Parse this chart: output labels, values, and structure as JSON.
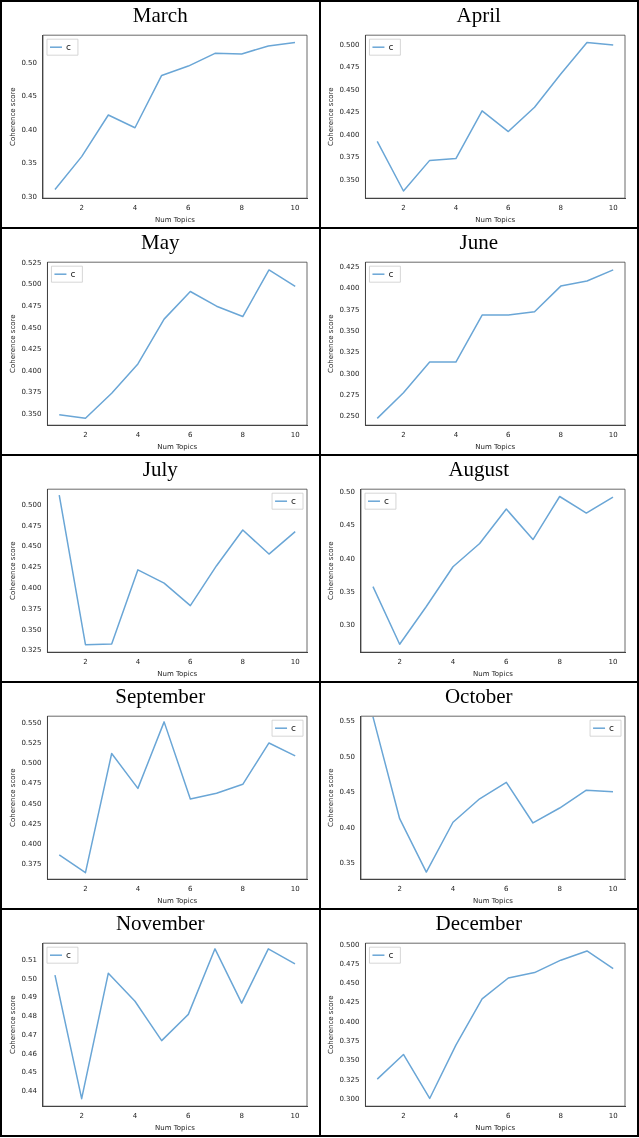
{
  "chart_data": [
    {
      "type": "line",
      "title": "March",
      "xlabel": "Num Topics",
      "ylabel": "Coherence score",
      "x": [
        1,
        2,
        3,
        4,
        5,
        6,
        7,
        8,
        9,
        10
      ],
      "xlim": [
        0.55,
        10.45
      ],
      "xticks": [
        2,
        4,
        6,
        8,
        10
      ],
      "ylim": [
        0.298,
        0.541
      ],
      "yticks": [
        {
          "value": 0.3,
          "label": "0.30"
        },
        {
          "value": 0.35,
          "label": "0.35"
        },
        {
          "value": 0.4,
          "label": "0.40"
        },
        {
          "value": 0.45,
          "label": "0.45"
        },
        {
          "value": 0.5,
          "label": "0.50"
        }
      ],
      "legend": "top left",
      "series": [
        {
          "name": "c",
          "color": "#6aa6d6",
          "values": [
            0.311,
            0.36,
            0.422,
            0.403,
            0.481,
            0.495,
            0.514,
            0.513,
            0.525,
            0.53
          ]
        }
      ]
    },
    {
      "type": "line",
      "title": "April",
      "xlabel": "Num Topics",
      "ylabel": "Coherence score",
      "x": [
        1,
        2,
        3,
        4,
        5,
        6,
        7,
        8,
        9,
        10
      ],
      "xlim": [
        0.55,
        10.45
      ],
      "xticks": [
        2,
        4,
        6,
        8,
        10
      ],
      "ylim": [
        0.33,
        0.511
      ],
      "yticks": [
        {
          "value": 0.35,
          "label": "0.350"
        },
        {
          "value": 0.375,
          "label": "0.375"
        },
        {
          "value": 0.4,
          "label": "0.400"
        },
        {
          "value": 0.425,
          "label": "0.425"
        },
        {
          "value": 0.45,
          "label": "0.450"
        },
        {
          "value": 0.475,
          "label": "0.475"
        },
        {
          "value": 0.5,
          "label": "0.500"
        }
      ],
      "legend": "top left",
      "series": [
        {
          "name": "c",
          "color": "#6aa6d6",
          "values": [
            0.393,
            0.338,
            0.372,
            0.374,
            0.427,
            0.404,
            0.431,
            0.468,
            0.503,
            0.5
          ]
        }
      ]
    },
    {
      "type": "line",
      "title": "May",
      "xlabel": "Num Topics",
      "ylabel": "Coherence score",
      "x": [
        1,
        2,
        3,
        4,
        5,
        6,
        7,
        8,
        9,
        10
      ],
      "xlim": [
        0.55,
        10.45
      ],
      "xticks": [
        2,
        4,
        6,
        8,
        10
      ],
      "ylim": [
        0.337,
        0.526
      ],
      "yticks": [
        {
          "value": 0.35,
          "label": "0.350"
        },
        {
          "value": 0.375,
          "label": "0.375"
        },
        {
          "value": 0.4,
          "label": "0.400"
        },
        {
          "value": 0.425,
          "label": "0.425"
        },
        {
          "value": 0.45,
          "label": "0.450"
        },
        {
          "value": 0.475,
          "label": "0.475"
        },
        {
          "value": 0.5,
          "label": "0.500"
        },
        {
          "value": 0.525,
          "label": "0.525"
        }
      ],
      "legend": "top left",
      "series": [
        {
          "name": "c",
          "color": "#6aa6d6",
          "values": [
            0.349,
            0.345,
            0.374,
            0.408,
            0.46,
            0.492,
            0.475,
            0.463,
            0.517,
            0.498
          ]
        }
      ]
    },
    {
      "type": "line",
      "title": "June",
      "xlabel": "Num Topics",
      "ylabel": "Coherence score",
      "x": [
        1,
        2,
        3,
        4,
        5,
        6,
        7,
        8,
        9,
        10
      ],
      "xlim": [
        0.55,
        10.45
      ],
      "xticks": [
        2,
        4,
        6,
        8,
        10
      ],
      "ylim": [
        0.24,
        0.431
      ],
      "yticks": [
        {
          "value": 0.25,
          "label": "0.250"
        },
        {
          "value": 0.275,
          "label": "0.275"
        },
        {
          "value": 0.3,
          "label": "0.300"
        },
        {
          "value": 0.325,
          "label": "0.325"
        },
        {
          "value": 0.35,
          "label": "0.350"
        },
        {
          "value": 0.375,
          "label": "0.375"
        },
        {
          "value": 0.4,
          "label": "0.400"
        },
        {
          "value": 0.425,
          "label": "0.425"
        }
      ],
      "legend": "top left",
      "series": [
        {
          "name": "c",
          "color": "#6aa6d6",
          "values": [
            0.248,
            0.278,
            0.314,
            0.314,
            0.369,
            0.369,
            0.373,
            0.403,
            0.409,
            0.422
          ]
        }
      ]
    },
    {
      "type": "line",
      "title": "July",
      "xlabel": "Num Topics",
      "ylabel": "Coherence score",
      "x": [
        1,
        2,
        3,
        4,
        5,
        6,
        7,
        8,
        9,
        10
      ],
      "xlim": [
        0.55,
        10.45
      ],
      "xticks": [
        2,
        4,
        6,
        8,
        10
      ],
      "ylim": [
        0.323,
        0.519
      ],
      "yticks": [
        {
          "value": 0.325,
          "label": "0.325"
        },
        {
          "value": 0.35,
          "label": "0.350"
        },
        {
          "value": 0.375,
          "label": "0.375"
        },
        {
          "value": 0.4,
          "label": "0.400"
        },
        {
          "value": 0.425,
          "label": "0.425"
        },
        {
          "value": 0.45,
          "label": "0.450"
        },
        {
          "value": 0.475,
          "label": "0.475"
        },
        {
          "value": 0.5,
          "label": "0.500"
        }
      ],
      "legend": "top right",
      "series": [
        {
          "name": "c",
          "color": "#6aa6d6",
          "values": [
            0.512,
            0.332,
            0.333,
            0.422,
            0.406,
            0.379,
            0.427,
            0.47,
            0.441,
            0.468
          ]
        }
      ]
    },
    {
      "type": "line",
      "title": "August",
      "xlabel": "Num Topics",
      "ylabel": "Coherence score",
      "x": [
        1,
        2,
        3,
        4,
        5,
        6,
        7,
        8,
        9,
        10
      ],
      "xlim": [
        0.55,
        10.45
      ],
      "xticks": [
        2,
        4,
        6,
        8,
        10
      ],
      "ylim": [
        0.259,
        0.505
      ],
      "yticks": [
        {
          "value": 0.3,
          "label": "0.30"
        },
        {
          "value": 0.35,
          "label": "0.35"
        },
        {
          "value": 0.4,
          "label": "0.40"
        },
        {
          "value": 0.45,
          "label": "0.45"
        },
        {
          "value": 0.5,
          "label": "0.50"
        }
      ],
      "legend": "top left",
      "series": [
        {
          "name": "c",
          "color": "#6aa6d6",
          "values": [
            0.358,
            0.271,
            0.328,
            0.388,
            0.423,
            0.475,
            0.429,
            0.494,
            0.469,
            0.493
          ]
        }
      ]
    },
    {
      "type": "line",
      "title": "September",
      "xlabel": "Num Topics",
      "ylabel": "Coherence score",
      "x": [
        1,
        2,
        3,
        4,
        5,
        6,
        7,
        8,
        9,
        10
      ],
      "xlim": [
        0.55,
        10.45
      ],
      "xticks": [
        2,
        4,
        6,
        8,
        10
      ],
      "ylim": [
        0.357,
        0.558
      ],
      "yticks": [
        {
          "value": 0.375,
          "label": "0.375"
        },
        {
          "value": 0.4,
          "label": "0.400"
        },
        {
          "value": 0.425,
          "label": "0.425"
        },
        {
          "value": 0.45,
          "label": "0.450"
        },
        {
          "value": 0.475,
          "label": "0.475"
        },
        {
          "value": 0.5,
          "label": "0.500"
        },
        {
          "value": 0.525,
          "label": "0.525"
        },
        {
          "value": 0.55,
          "label": "0.550"
        }
      ],
      "legend": "top right",
      "series": [
        {
          "name": "c",
          "color": "#6aa6d6",
          "values": [
            0.387,
            0.365,
            0.512,
            0.469,
            0.551,
            0.456,
            0.463,
            0.474,
            0.525,
            0.509
          ]
        }
      ]
    },
    {
      "type": "line",
      "title": "October",
      "xlabel": "Num Topics",
      "ylabel": "Coherence score",
      "x": [
        1,
        2,
        3,
        4,
        5,
        6,
        7,
        8,
        9,
        10
      ],
      "xlim": [
        0.55,
        10.45
      ],
      "xticks": [
        2,
        4,
        6,
        8,
        10
      ],
      "ylim": [
        0.328,
        0.557
      ],
      "yticks": [
        {
          "value": 0.35,
          "label": "0.35"
        },
        {
          "value": 0.4,
          "label": "0.40"
        },
        {
          "value": 0.45,
          "label": "0.45"
        },
        {
          "value": 0.5,
          "label": "0.50"
        },
        {
          "value": 0.55,
          "label": "0.55"
        }
      ],
      "legend": "top right",
      "series": [
        {
          "name": "c",
          "color": "#6aa6d6",
          "values": [
            0.556,
            0.413,
            0.338,
            0.408,
            0.441,
            0.464,
            0.407,
            0.428,
            0.453,
            0.451
          ]
        }
      ]
    },
    {
      "type": "line",
      "title": "November",
      "xlabel": "Num Topics",
      "ylabel": "Coherence score",
      "x": [
        1,
        2,
        3,
        4,
        5,
        6,
        7,
        8,
        9,
        10
      ],
      "xlim": [
        0.55,
        10.45
      ],
      "xticks": [
        2,
        4,
        6,
        8,
        10
      ],
      "ylim": [
        0.432,
        0.519
      ],
      "yticks": [
        {
          "value": 0.44,
          "label": "0.44"
        },
        {
          "value": 0.45,
          "label": "0.45"
        },
        {
          "value": 0.46,
          "label": "0.46"
        },
        {
          "value": 0.47,
          "label": "0.47"
        },
        {
          "value": 0.48,
          "label": "0.48"
        },
        {
          "value": 0.49,
          "label": "0.49"
        },
        {
          "value": 0.5,
          "label": "0.50"
        },
        {
          "value": 0.51,
          "label": "0.51"
        }
      ],
      "legend": "top left",
      "series": [
        {
          "name": "c",
          "color": "#6aa6d6",
          "values": [
            0.502,
            0.436,
            0.503,
            0.488,
            0.467,
            0.481,
            0.516,
            0.487,
            0.516,
            0.508
          ]
        }
      ]
    },
    {
      "type": "line",
      "title": "December",
      "xlabel": "Num Topics",
      "ylabel": "Coherence score",
      "x": [
        1,
        2,
        3,
        4,
        5,
        6,
        7,
        8,
        9,
        10
      ],
      "xlim": [
        0.55,
        10.45
      ],
      "xticks": [
        2,
        4,
        6,
        8,
        10
      ],
      "ylim": [
        0.291,
        0.502
      ],
      "yticks": [
        {
          "value": 0.3,
          "label": "0.300"
        },
        {
          "value": 0.325,
          "label": "0.325"
        },
        {
          "value": 0.35,
          "label": "0.350"
        },
        {
          "value": 0.375,
          "label": "0.375"
        },
        {
          "value": 0.4,
          "label": "0.400"
        },
        {
          "value": 0.425,
          "label": "0.425"
        },
        {
          "value": 0.45,
          "label": "0.450"
        },
        {
          "value": 0.475,
          "label": "0.475"
        },
        {
          "value": 0.5,
          "label": "0.500"
        }
      ],
      "legend": "top left",
      "series": [
        {
          "name": "c",
          "color": "#6aa6d6",
          "values": [
            0.326,
            0.358,
            0.301,
            0.37,
            0.43,
            0.457,
            0.464,
            0.48,
            0.492,
            0.469
          ]
        }
      ]
    }
  ]
}
